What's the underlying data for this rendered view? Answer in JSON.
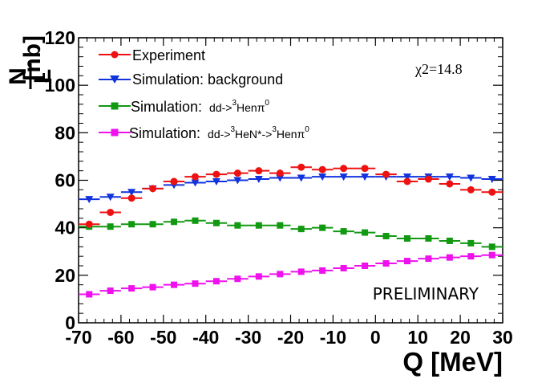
{
  "chart_data": {
    "type": "scatter",
    "xlabel": "Q [MeV]",
    "ylabel_numerator": "N",
    "ylabel_denominator": "L",
    "ylabel_unit": "[nb]",
    "xlim": [
      -70,
      30
    ],
    "ylim": [
      0,
      120
    ],
    "xticks": [
      -70,
      -60,
      -50,
      -40,
      -30,
      -20,
      -10,
      0,
      10,
      20,
      30
    ],
    "yticks": [
      0,
      20,
      40,
      60,
      80,
      100,
      120
    ],
    "x": [
      -67.5,
      -62.5,
      -57.5,
      -52.5,
      -47.5,
      -42.5,
      -37.5,
      -32.5,
      -27.5,
      -22.5,
      -17.5,
      -12.5,
      -7.5,
      -2.5,
      2.5,
      7.5,
      12.5,
      17.5,
      22.5,
      27.5
    ],
    "chi2_label": "χ2=14.8",
    "annotation": "PRELIMINARY",
    "series": [
      {
        "name": "Experiment",
        "legend": {
          "main": "Experiment"
        },
        "color": "#ee1111",
        "marker": "circle",
        "values": [
          41.5,
          46.5,
          52.5,
          56.5,
          59.5,
          61.5,
          62.5,
          63.0,
          64.0,
          63.0,
          65.5,
          64.5,
          65.0,
          65.0,
          62.5,
          59.5,
          60.5,
          58.5,
          56.0,
          55.0
        ]
      },
      {
        "name": "Simulation: background",
        "legend": {
          "main": "Simulation: background"
        },
        "color": "#1133dd",
        "marker": "triangle-down",
        "values": [
          52.0,
          53.0,
          55.0,
          56.5,
          58.0,
          59.0,
          59.5,
          60.0,
          60.5,
          61.0,
          61.0,
          61.5,
          61.5,
          61.5,
          61.5,
          61.5,
          61.5,
          61.5,
          61.0,
          60.5
        ]
      },
      {
        "name": "Simulation: dd->3Henπ0",
        "legend": {
          "main": "Simulation: ",
          "p1": "dd->",
          "s1": "3",
          "p2": "Henπ",
          "s2": "0"
        },
        "color": "#119911",
        "marker": "square",
        "values": [
          40.5,
          40.5,
          41.5,
          41.5,
          42.5,
          43.0,
          42.0,
          41.0,
          41.0,
          41.0,
          39.5,
          40.0,
          38.5,
          38.0,
          36.5,
          35.5,
          35.5,
          34.5,
          33.5,
          32.0
        ]
      },
      {
        "name": "Simulation: dd->3HeN*->3Henπ0",
        "legend": {
          "main": "Simulation: ",
          "p1": "dd->",
          "s1": "3",
          "p2": "HeN*->",
          "s2": "3",
          "p3": "Henπ",
          "s3": "0"
        },
        "color": "#ee11ee",
        "marker": "square",
        "values": [
          12.0,
          13.5,
          14.5,
          15.0,
          16.0,
          16.5,
          17.5,
          18.5,
          19.5,
          20.5,
          21.5,
          22.0,
          23.0,
          24.0,
          25.0,
          26.0,
          27.0,
          27.5,
          28.0,
          28.5
        ]
      }
    ]
  }
}
